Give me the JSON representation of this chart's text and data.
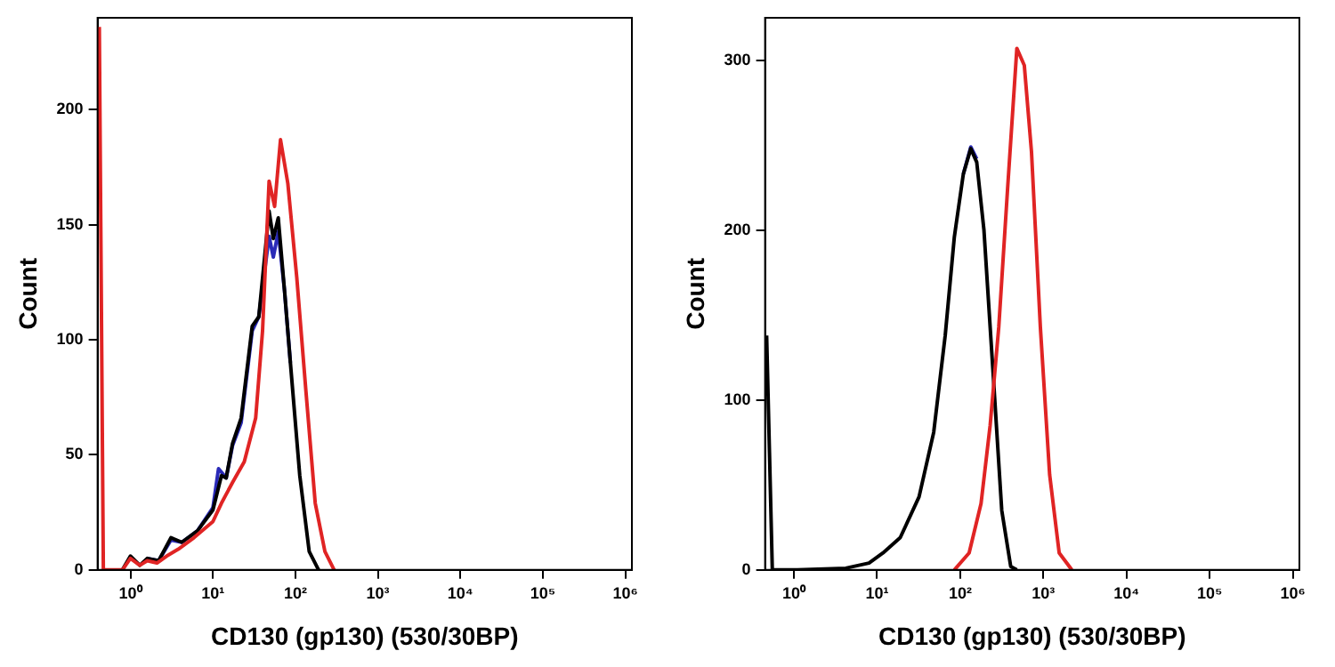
{
  "chart_data": [
    {
      "type": "line",
      "xlabel": "CD130 (gp130) (530/30BP)",
      "ylabel": "Count",
      "log": "x",
      "xlim": [
        0.4,
        1200000
      ],
      "ylim": [
        0,
        240
      ],
      "xticks": [
        {
          "value": 1,
          "label": "10⁰"
        },
        {
          "value": 10,
          "label": "10¹"
        },
        {
          "value": 100,
          "label": "10²"
        },
        {
          "value": 1000,
          "label": "10³"
        },
        {
          "value": 10000,
          "label": "10⁴"
        },
        {
          "value": 100000,
          "label": "10⁵"
        },
        {
          "value": 1000000,
          "label": "10⁶"
        }
      ],
      "yticks": [
        0,
        50,
        100,
        150,
        200
      ],
      "series": [
        {
          "color": "#2a2ab8",
          "x": [
            1.6,
            2.2,
            3.1,
            4.2,
            6.5,
            10,
            11.7,
            14.5,
            17.3,
            22,
            30,
            36,
            48,
            54,
            62,
            74,
            87
          ],
          "values": [
            5,
            4,
            13,
            12,
            17,
            27,
            44,
            40,
            54,
            64,
            104,
            110,
            145,
            136,
            147,
            121,
            90
          ]
        },
        {
          "color": "#000000",
          "x": [
            0.8,
            1,
            1.3,
            1.6,
            2.2,
            3.1,
            4.2,
            6.5,
            10,
            12.7,
            14.5,
            17.3,
            22,
            30,
            36,
            48,
            54,
            62,
            74,
            87,
            113,
            147,
            191
          ],
          "values": [
            0,
            6,
            2,
            5,
            4,
            14,
            12,
            17,
            26,
            41,
            40,
            55,
            66,
            106,
            110,
            156,
            144,
            153,
            121,
            90,
            41,
            8,
            0
          ]
        },
        {
          "color": "#e02424",
          "x": [
            0.42,
            0.47,
            0.8,
            1,
            1.3,
            1.6,
            2.1,
            2.75,
            3.8,
            5.9,
            10,
            12.7,
            17.3,
            24,
            33,
            40,
            48,
            56,
            66,
            81,
            104,
            134,
            174,
            228,
            295
          ],
          "values": [
            236,
            0,
            0,
            5,
            2,
            4,
            3,
            6,
            9,
            14,
            21,
            29,
            38,
            47,
            66,
            104,
            169,
            158,
            187,
            168,
            127,
            78,
            29,
            8,
            0
          ]
        }
      ]
    },
    {
      "type": "line",
      "xlabel": "CD130 (gp130) (530/30BP)",
      "ylabel": "Count",
      "log": "x",
      "xlim": [
        0.45,
        1200000
      ],
      "ylim": [
        0,
        325
      ],
      "xticks": [
        {
          "value": 1,
          "label": "10⁰"
        },
        {
          "value": 10,
          "label": "10¹"
        },
        {
          "value": 100,
          "label": "10²"
        },
        {
          "value": 1000,
          "label": "10³"
        },
        {
          "value": 10000,
          "label": "10⁴"
        },
        {
          "value": 100000,
          "label": "10⁵"
        },
        {
          "value": 1000000,
          "label": "10⁶"
        }
      ],
      "yticks": [
        0,
        100,
        200,
        300
      ],
      "series": [
        {
          "color": "#2a2ab8",
          "x": [
            109,
            134,
            158
          ],
          "values": [
            233,
            249,
            242
          ]
        },
        {
          "color": "#000000",
          "x": [
            0.47,
            0.55,
            1.1,
            4.2,
            8,
            11.8,
            19,
            32,
            48,
            66,
            85,
            109,
            134,
            158,
            193,
            247,
            316,
            405,
            480
          ],
          "values": [
            138,
            0,
            0,
            1,
            4,
            10,
            19,
            43,
            81,
            138,
            196,
            233,
            248,
            240,
            200,
            118,
            35,
            2,
            0
          ]
        },
        {
          "color": "#e02424",
          "x": [
            85,
            128,
            178,
            229,
            291,
            372,
            480,
            590,
            720,
            920,
            1190,
            1550,
            2200
          ],
          "values": [
            0,
            10,
            39,
            85,
            143,
            225,
            307,
            297,
            246,
            143,
            56,
            10,
            0
          ]
        }
      ]
    }
  ]
}
